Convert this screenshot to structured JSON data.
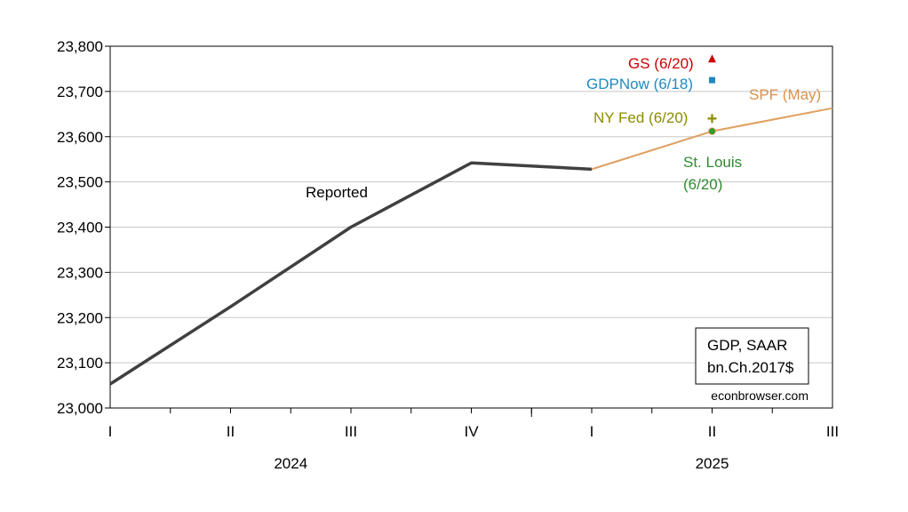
{
  "chart_data": {
    "type": "line",
    "x_categories": [
      "I",
      "II",
      "III",
      "IV",
      "I",
      "II",
      "III"
    ],
    "year_labels": [
      {
        "label": "2024",
        "quarter_index": 1.5
      },
      {
        "label": "2025",
        "quarter_index": 5
      }
    ],
    "ylim": [
      23000,
      23800
    ],
    "yticks": [
      23000,
      23100,
      23200,
      23300,
      23400,
      23500,
      23600,
      23700,
      23800
    ],
    "grid": "horizontal",
    "series": [
      {
        "name": "Reported",
        "color": "#404040",
        "x": [
          0,
          1,
          2,
          3,
          4
        ],
        "values": [
          23053,
          23224,
          23400,
          23542,
          23528
        ]
      },
      {
        "name": "SPF (May)",
        "color": "#e0a060",
        "x": [
          4,
          5,
          6
        ],
        "values": [
          23528,
          23612,
          23663
        ]
      }
    ],
    "points": [
      {
        "name": "GS (6/20)",
        "x": 5,
        "value": 23772,
        "marker": "triangle",
        "color": "#cc0000"
      },
      {
        "name": "GDPNow (6/18)",
        "x": 5,
        "value": 23725,
        "marker": "square",
        "color": "#1f8ac0"
      },
      {
        "name": "NY Fed (6/20)",
        "x": 5,
        "value": 23640,
        "marker": "plus",
        "color": "#8b8b00"
      },
      {
        "name": "St. Louis (6/20)",
        "x": 5,
        "value": 23612,
        "marker": "circle",
        "color": "#2e9c2e"
      }
    ],
    "annotations": {
      "reported": "Reported",
      "spf": "SPF (May)",
      "gs": "GS (6/20)",
      "gdpnow": "GDPNow (6/18)",
      "nyfed": "NY Fed (6/20)",
      "stlouis_line1": "St. Louis",
      "stlouis_line2": "(6/20)"
    },
    "legend_box": {
      "line1": "GDP, SAAR",
      "line2": "bn.Ch.2017$",
      "placement": "bottom-right"
    },
    "source": "econbrowser.com"
  }
}
